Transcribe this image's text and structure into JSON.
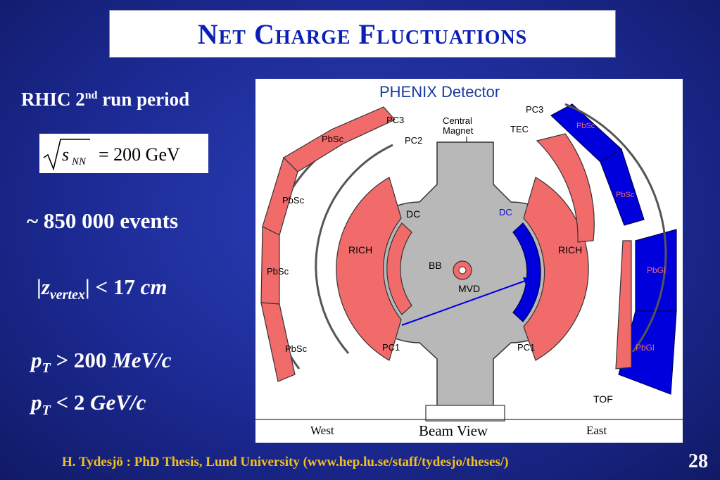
{
  "title": "Net Charge Fluctuations",
  "left": {
    "rhic_prefix": "RHIC 2",
    "rhic_sup": "nd",
    "rhic_suffix": " run period",
    "formula": {
      "sqrt_arg": "s",
      "sqrt_sub": "NN",
      "rhs": "= 200 GeV"
    },
    "events": "~ 850 000 events",
    "zvertex": {
      "bar_left": "|",
      "z": "z",
      "sub": "vertex",
      "rest": "| < 17 ",
      "unit": "cm"
    },
    "pt1": {
      "p": "p",
      "sub": "T",
      "rest": " > 200 ",
      "unit": "MeV/c"
    },
    "pt2": {
      "p": "p",
      "sub": "T",
      "rest": " < 2 ",
      "unit": "GeV/c"
    }
  },
  "diagram": {
    "title": "PHENIX Detector",
    "labels": {
      "pc3_w": "PC3",
      "pc2_w": "PC2",
      "central_magnet_1": "Central",
      "central_magnet_2": "Magnet",
      "pc3_e": "PC3",
      "tec": "TEC",
      "pbsc1": "PbSc",
      "pbsc2": "PbSc",
      "pbsc3": "PbSc",
      "pbsc4": "PbSc",
      "dc_w": "DC",
      "dc_e": "DC",
      "rich_w": "RICH",
      "rich_e": "RICH",
      "bb": "BB",
      "mvd": "MVD",
      "pc1_w": "PC1",
      "pc1_e": "PC1",
      "tof": "TOF",
      "e_pbsc1": "PbSc",
      "e_pbsc2": "PbSc",
      "e_pbgl1": "PbGl",
      "e_pbgl2": "PbGl",
      "west": "West",
      "beam_view": "Beam View",
      "east": "East"
    },
    "colors": {
      "active": "#0000dd",
      "inactive": "#f26b6b",
      "magnet": "#b8b8b8"
    }
  },
  "footer": "H. Tydesjö  :  PhD Thesis, Lund University (www.hep.lu.se/staff/tydesjo/theses/)",
  "page_number": "28"
}
